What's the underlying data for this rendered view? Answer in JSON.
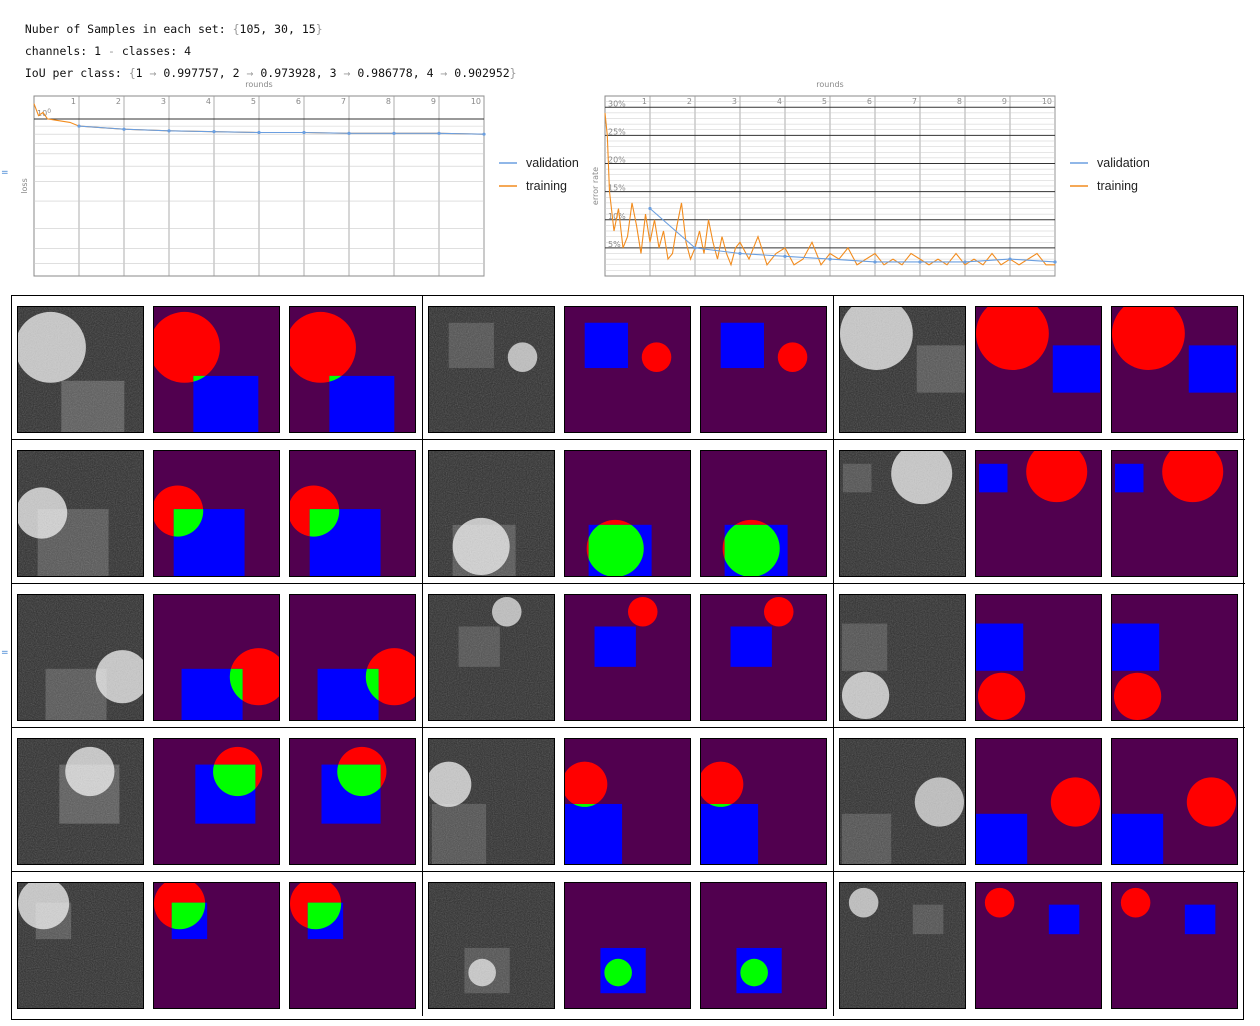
{
  "header": {
    "samples_label": "Nuber of Samples in each set: ",
    "samples_open": "{",
    "samples_values": "105, 30, 15",
    "samples_close": "}",
    "channels_label": "channels: 1 ",
    "channels_sep": "-",
    "classes_label": " classes: 4",
    "iou_label": "IoU per class: ",
    "iou_open": "{",
    "iou_items": [
      "1",
      "0.997757",
      "2",
      "0.973928",
      "3",
      "0.986778",
      "4",
      "0.902952"
    ],
    "iou_close": "}",
    "arrow": "→",
    "side_mark": "="
  },
  "colors": {
    "validation": "#6b9fe0",
    "training": "#f28c1e",
    "background_class": "#51004f",
    "circle_class": "#ff0000",
    "square_class": "#0000ff",
    "overlap_class": "#00ff00",
    "noise_bg": "#2a2a2a"
  },
  "chart_data": [
    {
      "type": "line",
      "title": "",
      "xlabel": "rounds",
      "ylabel": "loss",
      "x_ticks": [
        "1",
        "2",
        "3",
        "4",
        "5",
        "6",
        "7",
        "8",
        "9",
        "10"
      ],
      "y_tick_label": "10",
      "y_tick_exp": "0",
      "xlim": [
        0,
        10
      ],
      "log_scale": true,
      "grid": true,
      "legend_position": "right",
      "series": [
        {
          "name": "validation",
          "x": [
            1,
            2,
            3,
            4,
            5,
            6,
            7,
            8,
            9,
            10
          ],
          "values": [
            0.9,
            0.86,
            0.84,
            0.83,
            0.82,
            0.82,
            0.81,
            0.81,
            0.81,
            0.8
          ]
        },
        {
          "name": "training",
          "x": [
            0,
            0.1,
            0.2,
            0.3,
            0.5,
            0.8,
            1,
            1.5,
            2,
            3,
            4,
            5,
            6,
            7,
            8,
            9,
            10
          ],
          "values": [
            1.25,
            1.05,
            1.1,
            1.0,
            0.98,
            0.95,
            0.9,
            0.88,
            0.86,
            0.84,
            0.83,
            0.82,
            0.82,
            0.81,
            0.81,
            0.81,
            0.8
          ]
        }
      ]
    },
    {
      "type": "line",
      "title": "",
      "xlabel": "rounds",
      "ylabel": "error rate",
      "x_ticks": [
        "1",
        "2",
        "3",
        "4",
        "5",
        "6",
        "7",
        "8",
        "9",
        "10"
      ],
      "y_ticks": [
        "5%",
        "10%",
        "15%",
        "20%",
        "25%",
        "30%"
      ],
      "xlim": [
        0,
        10
      ],
      "ylim": [
        0,
        32
      ],
      "grid": true,
      "legend_position": "right",
      "series": [
        {
          "name": "validation",
          "x": [
            1,
            2,
            3,
            4,
            5,
            6,
            7,
            8,
            9,
            10
          ],
          "values": [
            12,
            5,
            4,
            3.5,
            3,
            2.5,
            2.5,
            2.5,
            3,
            2.5
          ]
        },
        {
          "name": "training",
          "x": [
            0,
            0.05,
            0.1,
            0.2,
            0.3,
            0.4,
            0.5,
            0.6,
            0.7,
            0.8,
            0.9,
            1.0,
            1.1,
            1.2,
            1.3,
            1.4,
            1.5,
            1.6,
            1.7,
            1.8,
            1.9,
            2.0,
            2.1,
            2.2,
            2.3,
            2.4,
            2.5,
            2.6,
            2.7,
            2.8,
            2.9,
            3.0,
            3.2,
            3.4,
            3.6,
            3.8,
            4.0,
            4.2,
            4.4,
            4.6,
            4.8,
            5.0,
            5.2,
            5.4,
            5.6,
            5.8,
            6.0,
            6.2,
            6.4,
            6.6,
            6.8,
            7.0,
            7.2,
            7.4,
            7.6,
            7.8,
            8.0,
            8.2,
            8.4,
            8.6,
            8.8,
            9.0,
            9.2,
            9.4,
            9.6,
            9.8,
            10.0
          ],
          "values": [
            29,
            25,
            15,
            8,
            12,
            5,
            7,
            13,
            9,
            4,
            11,
            6,
            10,
            5,
            8,
            3,
            4,
            9,
            13,
            6,
            3,
            5,
            8,
            4,
            10,
            6,
            3,
            7,
            4,
            2,
            5,
            6,
            3,
            7,
            2,
            4,
            5,
            2,
            3,
            6,
            2,
            4,
            3,
            5,
            2,
            3,
            4,
            2,
            3,
            2,
            4,
            3,
            2,
            3,
            2,
            4,
            2,
            3,
            2,
            4,
            2,
            3,
            2,
            3,
            4,
            2,
            2
          ]
        }
      ]
    }
  ],
  "grid": {
    "rows": [
      [
        {
          "input": {
            "circle": [
              33,
              41,
              36,
              0.75
            ],
            "squares": [
              [
                44,
                75,
                108,
                127,
                0.4
              ]
            ]
          },
          "gt": {
            "circle": [
              31,
              41,
              36
            ],
            "squares": [
              [
                40,
                70,
                106,
                127
              ]
            ],
            "overlap": true
          },
          "pred": {
            "circle": [
              31,
              41,
              36
            ],
            "squares": [
              [
                40,
                70,
                106,
                127
              ]
            ],
            "overlap": true
          }
        },
        {
          "input": {
            "circle": [
              95,
              51,
              15,
              0.7
            ],
            "squares": [
              [
                20,
                16,
                66,
                62,
                0.3
              ]
            ]
          },
          "gt": {
            "circle": [
              93,
              51,
              15
            ],
            "squares": [
              [
                20,
                16,
                64,
                62
              ]
            ],
            "overlap": false
          },
          "pred": {
            "circle": [
              93,
              51,
              15
            ],
            "squares": [
              [
                20,
                16,
                64,
                62
              ]
            ],
            "overlap": false
          }
        },
        {
          "input": {
            "circle": [
              37,
              27,
              37,
              0.75
            ],
            "squares": [
              [
                78,
                39,
                127,
                87,
                0.35
              ]
            ]
          },
          "gt": {
            "circle": [
              37,
              27,
              37
            ],
            "squares": [
              [
                78,
                39,
                126,
                87
              ]
            ],
            "overlap": false
          },
          "pred": {
            "circle": [
              37,
              27,
              37
            ],
            "squares": [
              [
                78,
                39,
                126,
                87
              ]
            ],
            "overlap": false
          }
        }
      ],
      [
        {
          "input": {
            "circle": [
              24,
              63,
              26,
              0.75
            ],
            "squares": [
              [
                20,
                59,
                92,
                127,
                0.35
              ]
            ]
          },
          "gt": {
            "circle": [
              24,
              61,
              26
            ],
            "squares": [
              [
                20,
                59,
                92,
                127
              ]
            ],
            "overlap": true
          },
          "pred": {
            "circle": [
              24,
              61,
              26
            ],
            "squares": [
              [
                20,
                59,
                92,
                127
              ]
            ],
            "overlap": true
          }
        },
        {
          "input": {
            "circle": [
              53,
              97,
              29,
              0.75
            ],
            "squares": [
              [
                24,
                75,
                88,
                127,
                0.35
              ]
            ]
          },
          "gt": {
            "circle": [
              51,
              99,
              29
            ],
            "squares": [
              [
                24,
                75,
                88,
                127
              ]
            ],
            "overlap": true
          },
          "pred": {
            "circle": [
              51,
              99,
              29
            ],
            "squares": [
              [
                24,
                75,
                88,
                127
              ]
            ],
            "overlap": true
          }
        },
        {
          "input": {
            "circle": [
              83,
              23,
              31,
              0.75
            ],
            "squares": [
              [
                3,
                13,
                32,
                42,
                0.3
              ]
            ]
          },
          "gt": {
            "circle": [
              82,
              21,
              31
            ],
            "squares": [
              [
                3,
                13,
                32,
                42
              ]
            ],
            "overlap": false
          },
          "pred": {
            "circle": [
              82,
              21,
              31
            ],
            "squares": [
              [
                3,
                13,
                32,
                42
              ]
            ],
            "overlap": false
          }
        }
      ],
      [
        {
          "input": {
            "circle": [
              106,
              83,
              27,
              0.75
            ],
            "squares": [
              [
                28,
                75,
                90,
                127,
                0.35
              ]
            ]
          },
          "gt": {
            "circle": [
              106,
              83,
              29
            ],
            "squares": [
              [
                28,
                75,
                90,
                127
              ]
            ],
            "overlap": true
          },
          "pred": {
            "circle": [
              106,
              83,
              29
            ],
            "squares": [
              [
                28,
                75,
                90,
                127
              ]
            ],
            "overlap": true
          }
        },
        {
          "input": {
            "circle": [
              79,
              17,
              15,
              0.7
            ],
            "squares": [
              [
                30,
                32,
                72,
                73,
                0.3
              ]
            ]
          },
          "gt": {
            "circle": [
              79,
              17,
              15
            ],
            "squares": [
              [
                30,
                32,
                72,
                73
              ]
            ],
            "overlap": false
          },
          "pred": {
            "circle": [
              79,
              17,
              15
            ],
            "squares": [
              [
                30,
                32,
                72,
                73
              ]
            ],
            "overlap": false
          }
        },
        {
          "input": {
            "circle": [
              26,
              102,
              24,
              0.75
            ],
            "squares": [
              [
                2,
                29,
                48,
                77,
                0.3
              ]
            ]
          },
          "gt": {
            "circle": [
              26,
              103,
              24
            ],
            "squares": [
              [
                0,
                29,
                48,
                77
              ]
            ],
            "overlap": false
          },
          "pred": {
            "circle": [
              26,
              103,
              24
            ],
            "squares": [
              [
                0,
                29,
                48,
                77
              ]
            ],
            "overlap": true
          }
        }
      ],
      [
        {
          "input": {
            "circle": [
              73,
              33,
              25,
              0.75
            ],
            "squares": [
              [
                42,
                26,
                103,
                86,
                0.4
              ]
            ]
          },
          "gt": {
            "circle": [
              85,
              33,
              25
            ],
            "squares": [
              [
                42,
                26,
                103,
                86
              ]
            ],
            "overlap": true
          },
          "pred": {
            "circle": [
              73,
              33,
              25
            ],
            "squares": [
              [
                32,
                26,
                92,
                86
              ]
            ],
            "overlap": true
          }
        },
        {
          "input": {
            "circle": [
              20,
              46,
              23,
              0.75
            ],
            "squares": [
              [
                3,
                66,
                58,
                127,
                0.3
              ]
            ]
          },
          "gt": {
            "circle": [
              20,
              46,
              23
            ],
            "squares": [
              [
                0,
                66,
                58,
                127
              ]
            ],
            "overlap": true
          },
          "pred": {
            "circle": [
              20,
              46,
              23
            ],
            "squares": [
              [
                0,
                66,
                58,
                127
              ]
            ],
            "overlap": true
          }
        },
        {
          "input": {
            "circle": [
              101,
              64,
              25,
              0.7
            ],
            "squares": [
              [
                2,
                76,
                52,
                127,
                0.3
              ]
            ]
          },
          "gt": {
            "circle": [
              101,
              64,
              25
            ],
            "squares": [
              [
                0,
                76,
                52,
                127
              ]
            ],
            "overlap": false
          },
          "pred": {
            "circle": [
              101,
              64,
              25
            ],
            "squares": [
              [
                0,
                76,
                52,
                127
              ]
            ],
            "overlap": false
          }
        }
      ],
      [
        {
          "input": {
            "circle": [
              26,
              21,
              26,
              0.75
            ],
            "squares": [
              [
                18,
                20,
                54,
                57,
                0.35
              ]
            ]
          },
          "gt": {
            "circle": [
              26,
              21,
              26
            ],
            "squares": [
              [
                18,
                20,
                54,
                57
              ]
            ],
            "overlap": true
          },
          "pred": {
            "circle": [
              26,
              21,
              26
            ],
            "squares": [
              [
                18,
                20,
                54,
                57
              ]
            ],
            "overlap": true
          }
        },
        {
          "input": {
            "circle": [
              54,
              91,
              14,
              0.7
            ],
            "squares": [
              [
                36,
                66,
                82,
                112,
                0.3
              ]
            ]
          },
          "gt": {
            "circle": [
              54,
              91,
              14
            ],
            "squares": [
              [
                36,
                66,
                82,
                112
              ]
            ],
            "overlap": true
          },
          "pred": {
            "circle": [
              54,
              91,
              14
            ],
            "squares": [
              [
                36,
                66,
                82,
                112
              ]
            ],
            "overlap": true
          }
        },
        {
          "input": {
            "circle": [
              24,
              20,
              15,
              0.7
            ],
            "squares": [
              [
                74,
                22,
                105,
                52,
                0.3
              ]
            ]
          },
          "gt": {
            "circle": [
              24,
              20,
              15
            ],
            "squares": [
              [
                74,
                22,
                105,
                52
              ]
            ],
            "overlap": false
          },
          "pred": {
            "circle": [
              24,
              20,
              15
            ],
            "squares": [
              [
                74,
                22,
                105,
                52
              ]
            ],
            "overlap": false
          }
        }
      ]
    ]
  }
}
